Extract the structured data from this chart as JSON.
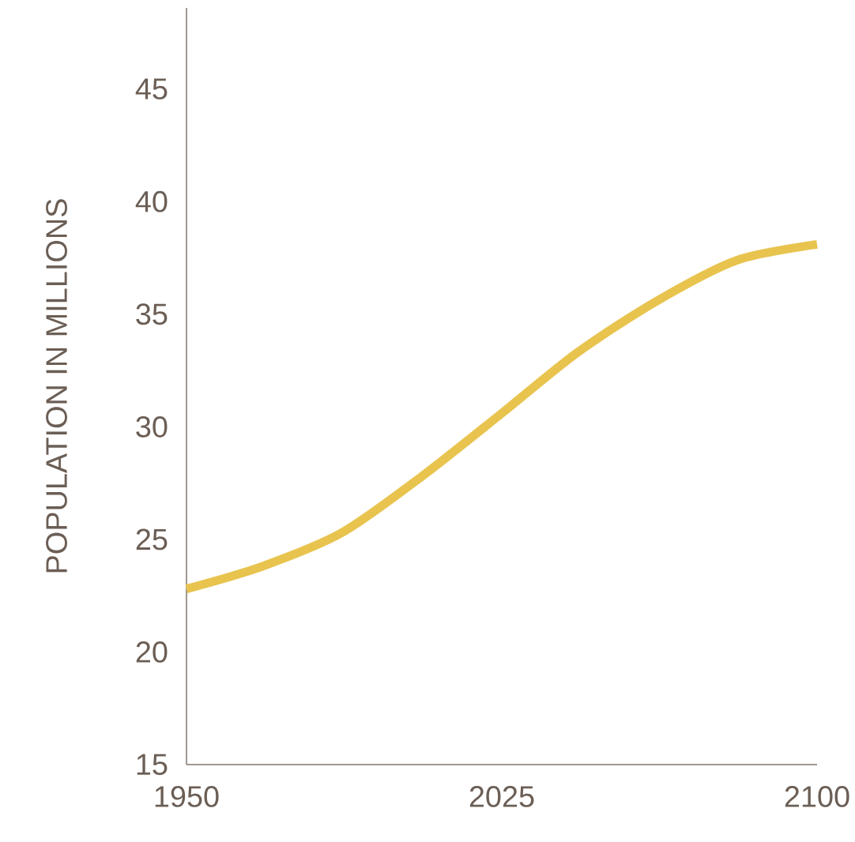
{
  "chart_data": {
    "type": "line",
    "ylabel": "POPULATION IN MILLIONS",
    "x": [
      1950,
      1968,
      1987,
      2006,
      2025,
      2043,
      2062,
      2081,
      2100
    ],
    "series": [
      {
        "color": "#e8c44f",
        "values": [
          22.8,
          23.8,
          25.3,
          27.8,
          30.6,
          33.3,
          35.6,
          37.4,
          38.1
        ]
      }
    ],
    "xlim": [
      1950,
      2100
    ],
    "ylim": [
      15,
      48.6
    ],
    "xticks": [
      1950,
      2025,
      2100
    ],
    "yticks": [
      15,
      20,
      25,
      30,
      35,
      40,
      45
    ]
  }
}
